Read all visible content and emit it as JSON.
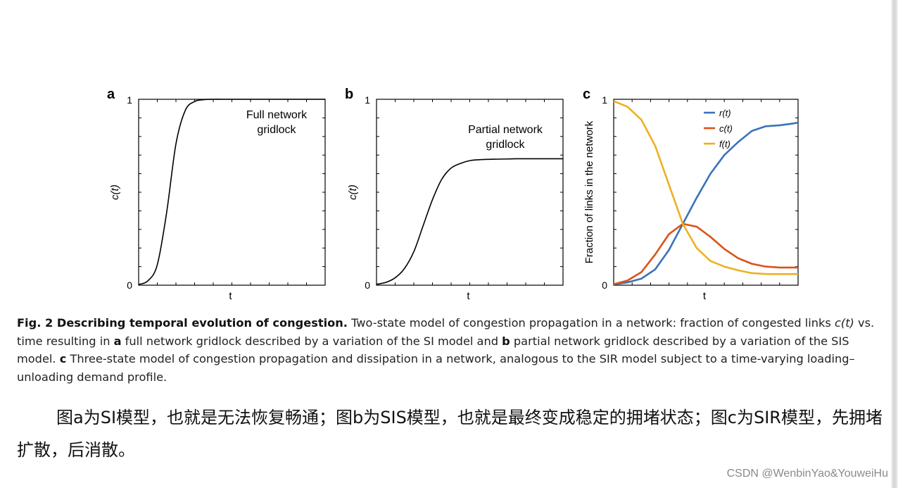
{
  "chart_data": [
    {
      "type": "line",
      "panel": "a",
      "ylabel": "c(t)",
      "xlabel": "t",
      "ylim": [
        0,
        1
      ],
      "y_ticks": [
        "0",
        "1"
      ],
      "annotation": [
        "Full network",
        "gridlock"
      ],
      "series": [
        {
          "color": "#000000",
          "x": [
            0,
            0.05,
            0.1,
            0.15,
            0.2,
            0.25,
            0.3,
            0.35,
            0.4,
            0.45,
            0.5,
            0.55,
            0.6,
            0.65,
            0.7,
            0.75,
            0.8,
            0.85,
            0.9,
            0.95,
            1.0
          ],
          "values": [
            0.004,
            0.024,
            0.11,
            0.39,
            0.76,
            0.94,
            0.988,
            0.998,
            1.0,
            1.0,
            1.0,
            1.0,
            1.0,
            1.0,
            1.0,
            1.0,
            1.0,
            1.0,
            1.0,
            1.0,
            1.0
          ]
        }
      ]
    },
    {
      "type": "line",
      "panel": "b",
      "ylabel": "c(t)",
      "xlabel": "t",
      "ylim": [
        0,
        1
      ],
      "y_ticks": [
        "0",
        "1"
      ],
      "annotation": [
        "Partial network",
        "gridlock"
      ],
      "series": [
        {
          "color": "#000000",
          "x": [
            0,
            0.05,
            0.1,
            0.15,
            0.2,
            0.25,
            0.3,
            0.35,
            0.4,
            0.45,
            0.5,
            0.55,
            0.6,
            0.65,
            0.7,
            0.75,
            0.8,
            0.85,
            0.9,
            0.95,
            1.0
          ],
          "values": [
            0.005,
            0.015,
            0.04,
            0.09,
            0.18,
            0.32,
            0.46,
            0.57,
            0.63,
            0.655,
            0.67,
            0.675,
            0.677,
            0.678,
            0.679,
            0.68,
            0.68,
            0.68,
            0.68,
            0.68,
            0.68
          ]
        }
      ]
    },
    {
      "type": "line",
      "panel": "c",
      "ylabel": "Fraction of links in the network",
      "xlabel": "t",
      "ylim": [
        0,
        1
      ],
      "y_ticks": [
        "0",
        "1"
      ],
      "legend_position": "top-right",
      "series": [
        {
          "name": "r(t)",
          "color": "#3a73b8",
          "x": [
            0,
            0.075,
            0.15,
            0.225,
            0.3,
            0.375,
            0.45,
            0.525,
            0.6,
            0.675,
            0.75,
            0.825,
            0.9,
            0.975,
            1.0
          ],
          "values": [
            0.005,
            0.015,
            0.035,
            0.085,
            0.19,
            0.33,
            0.47,
            0.6,
            0.7,
            0.77,
            0.83,
            0.855,
            0.86,
            0.87,
            0.875
          ]
        },
        {
          "name": "c(t)",
          "color": "#d95319",
          "x": [
            0,
            0.075,
            0.15,
            0.225,
            0.3,
            0.375,
            0.45,
            0.525,
            0.6,
            0.675,
            0.75,
            0.825,
            0.9,
            0.975,
            1.0
          ],
          "values": [
            0.005,
            0.025,
            0.07,
            0.165,
            0.275,
            0.33,
            0.315,
            0.26,
            0.195,
            0.145,
            0.115,
            0.1,
            0.095,
            0.095,
            0.095
          ]
        },
        {
          "name": "f(t)",
          "color": "#edb120",
          "x": [
            0,
            0.075,
            0.15,
            0.225,
            0.3,
            0.375,
            0.45,
            0.525,
            0.6,
            0.675,
            0.75,
            0.825,
            0.9,
            0.975,
            1.0
          ],
          "values": [
            0.99,
            0.96,
            0.89,
            0.75,
            0.54,
            0.33,
            0.2,
            0.13,
            0.1,
            0.08,
            0.065,
            0.06,
            0.06,
            0.06,
            0.06
          ]
        }
      ]
    }
  ],
  "caption": {
    "fig_label": "Fig. 2 Describing temporal evolution of congestion.",
    "part1": " Two-state model of congestion propagation in a network: fraction of congested links ",
    "ct": "c(t)",
    "part2": " vs. time resulting in ",
    "a": "a",
    "part3": " full network gridlock described by a variation of the SI model and ",
    "b": "b",
    "part4": " partial network gridlock described by a variation of the SIS model. ",
    "c": "c",
    "part5": " Three-state model of congestion propagation and dissipation in a network, analogous to the SIR model subject to a time-varying loading–unloading demand profile."
  },
  "note": "图a为SI模型，也就是无法恢复畅通；图b为SIS模型，也就是最终变成稳定的拥堵状态；图c为SIR模型，先拥堵扩散，后消散。",
  "watermark": "CSDN @WenbinYao&YouweiHu"
}
